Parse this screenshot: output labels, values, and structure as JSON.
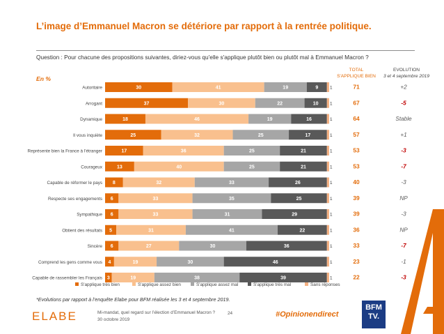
{
  "page": {
    "title": "L’image d’Emmanuel Macron se détériore par rapport à la rentrée politique.",
    "question": "Question : Pour chacune des propositions suivantes, diriez-vous qu'elle s'applique plutôt bien ou plutôt mal à Emmanuel Macron ?",
    "unit": "En %",
    "header_total_1": "TOTAL",
    "header_total_2": "S'APPLIQUE BIEN",
    "header_evo_1": "EVOLUTION",
    "header_evo_2": "3 et 4 septembre 2019",
    "footnote": "*Evolutions par rapport à l’enquête Elabe pour BFM réalisée les 3 et 4 septembre 2019.",
    "source_line1": "Mi-mandat, quel regard sur l’élection d’Emmanuel Macron ?",
    "source_line2": "30 octobre 2019",
    "page_number": "24",
    "hashtag": "#Opinionendirect",
    "logo_text": "ELABE",
    "tv_logo_line1": "BFM",
    "tv_logo_line2": "TV."
  },
  "colors": {
    "accent": "#e36c0a",
    "tres_bien": "#e36c0a",
    "assez_bien": "#f9c08e",
    "assez_mal": "#a6a6a6",
    "tres_mal": "#595959",
    "sans_reponse": "#f4b183",
    "negative_evolution": "#c00000"
  },
  "chart_data": {
    "type": "bar",
    "orientation": "horizontal-stacked",
    "xlim": [
      0,
      100
    ],
    "legend_position": "bottom",
    "categories": [
      "Autoritaire",
      "Arrogant",
      "Dynamique",
      "Il vous inquiète",
      "Représente bien la France à l’étranger",
      "Courageux",
      "Capable de réformer le pays",
      "Respecte ses engagements",
      "Sympathique",
      "Obtient des résultats",
      "Sincère",
      "Comprend les gens comme vous",
      "Capable de rassembler les Français"
    ],
    "series": [
      {
        "name": "S'applique très bien",
        "values": [
          30,
          37,
          18,
          25,
          17,
          13,
          8,
          6,
          6,
          5,
          6,
          4,
          3
        ]
      },
      {
        "name": "S'applique assez bien",
        "values": [
          41,
          30,
          46,
          32,
          36,
          40,
          32,
          33,
          33,
          31,
          27,
          19,
          19
        ]
      },
      {
        "name": "S'applique assez mal",
        "values": [
          19,
          22,
          19,
          25,
          25,
          25,
          33,
          35,
          31,
          41,
          30,
          30,
          38
        ]
      },
      {
        "name": "S'applique très mal",
        "values": [
          9,
          10,
          16,
          17,
          21,
          21,
          26,
          25,
          29,
          22,
          36,
          46,
          39
        ]
      },
      {
        "name": "Sans réponses",
        "values": [
          1,
          1,
          1,
          1,
          1,
          1,
          1,
          1,
          1,
          1,
          1,
          1,
          1
        ]
      }
    ],
    "total": [
      "71",
      "67",
      "64",
      "57",
      "53",
      "53",
      "40",
      "39",
      "39",
      "36",
      "33",
      "23",
      "22"
    ],
    "evolution": [
      "+2",
      "-5",
      "Stable",
      "+1",
      "-3",
      "-7",
      "-3",
      "NP",
      "-3",
      "NP",
      "-7",
      "-1",
      "-3"
    ],
    "evolution_highlight": [
      false,
      true,
      false,
      false,
      true,
      true,
      false,
      false,
      false,
      false,
      true,
      false,
      true
    ]
  }
}
